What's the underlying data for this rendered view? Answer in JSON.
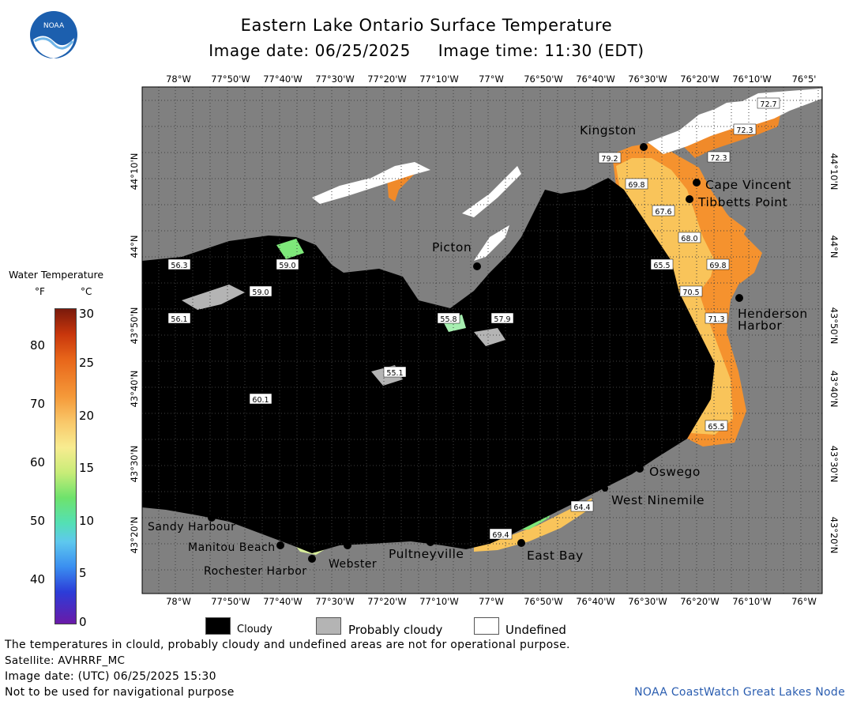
{
  "title": "Eastern Lake Ontario Surface Temperature",
  "image_date_line": "Image date: 06/25/2025     Image time: 11:30 (EDT)",
  "logo_text": "NOAA",
  "colorbar": {
    "title": "Water Temperature",
    "unit_f": "°F",
    "unit_c": "°C",
    "f_ticks": [
      "80",
      "70",
      "60",
      "50",
      "40"
    ],
    "c_ticks": [
      "30",
      "25",
      "20",
      "15",
      "10",
      "5",
      "0"
    ]
  },
  "axes": {
    "lon_top": [
      "78°W",
      "77°50'W",
      "77°40'W",
      "77°30'W",
      "77°20'W",
      "77°10'W",
      "77°W",
      "76°50'W",
      "76°40'W",
      "76°30'W",
      "76°20'W",
      "76°10'W",
      "76°5'"
    ],
    "lon_bottom": [
      "78°W",
      "77°50'W",
      "77°40'W",
      "77°30'W",
      "77°20'W",
      "77°10'W",
      "77°W",
      "76°50'W",
      "76°40'W",
      "76°30'W",
      "76°20'W",
      "76°10'W",
      "76°W"
    ],
    "lat": [
      "44°10'N",
      "44°N",
      "43°50'N",
      "43°40'N",
      "43°30'N",
      "43°20'N"
    ]
  },
  "places": {
    "kingston": "Kingston",
    "cape_vincent": "Cape Vincent",
    "tibbetts_point": "Tibbetts Point",
    "picton": "Picton",
    "henderson_harbor_1": "Henderson",
    "henderson_harbor_2": "Harbor",
    "oswego": "Oswego",
    "west_ninemile": "West Ninemile",
    "east_bay": "East Bay",
    "pultneyville": "Pultneyville",
    "webster": "Webster",
    "rochester_harbor": "Rochester Harbor",
    "manitou_beach": "Manitou Beach",
    "sandy_harbour": "Sandy Harbour"
  },
  "temps": {
    "t1": "72.7",
    "t2": "72.3",
    "t3": "79.2",
    "t4": "72.3",
    "t5": "69.8",
    "t6": "67.6",
    "t7": "68.0",
    "t8": "65.5",
    "t9": "69.8",
    "t10": "70.5",
    "t11": "71.3",
    "t12": "65.5",
    "t13": "64.4",
    "t14": "69.4",
    "t15": "56.3",
    "t16": "59.0",
    "t17": "59.0",
    "t18": "56.1",
    "t19": "55.8",
    "t20": "57.9",
    "t21": "55.1",
    "t22": "60.1"
  },
  "legend": {
    "cloudy": "Cloudy",
    "probably_cloudy": "Probably cloudy",
    "undefined": "Undefined"
  },
  "footer": {
    "disclaimer": "The temperatures in clould, probably cloudy and undefined areas are not for operational purpose.",
    "satellite": "Satellite: AVHRRF_MC",
    "utc_date": "Image date: (UTC) 06/25/2025  15:30",
    "nav_warning": "Not to be used for navigational purpose",
    "credit": "NOAA CoastWatch Great Lakes Node"
  },
  "colors": {
    "land": "#808080",
    "cloud": "#000000",
    "probably_cloudy": "#b4b4b4",
    "undefined": "#ffffff",
    "warm": "#f7a945",
    "credit": "#2a5db0"
  }
}
